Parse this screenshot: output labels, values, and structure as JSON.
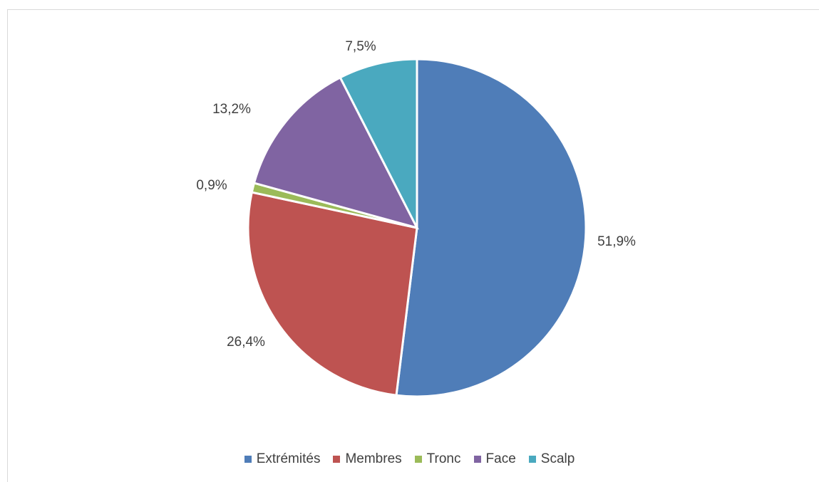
{
  "chart_data": {
    "type": "pie",
    "title": "",
    "categories": [
      "Extrémités",
      "Membres",
      "Tronc",
      "Face",
      "Scalp"
    ],
    "values": [
      51.9,
      26.4,
      0.9,
      13.2,
      7.5
    ],
    "value_labels": [
      "51,9%",
      "26,4%",
      "0,9%",
      "13,2%",
      "7,5%"
    ],
    "colors": [
      "#4f7db8",
      "#be5351",
      "#9bbb59",
      "#8064a2",
      "#4aa9bf"
    ],
    "legend_position": "bottom",
    "start_angle": "top, clockwise"
  }
}
